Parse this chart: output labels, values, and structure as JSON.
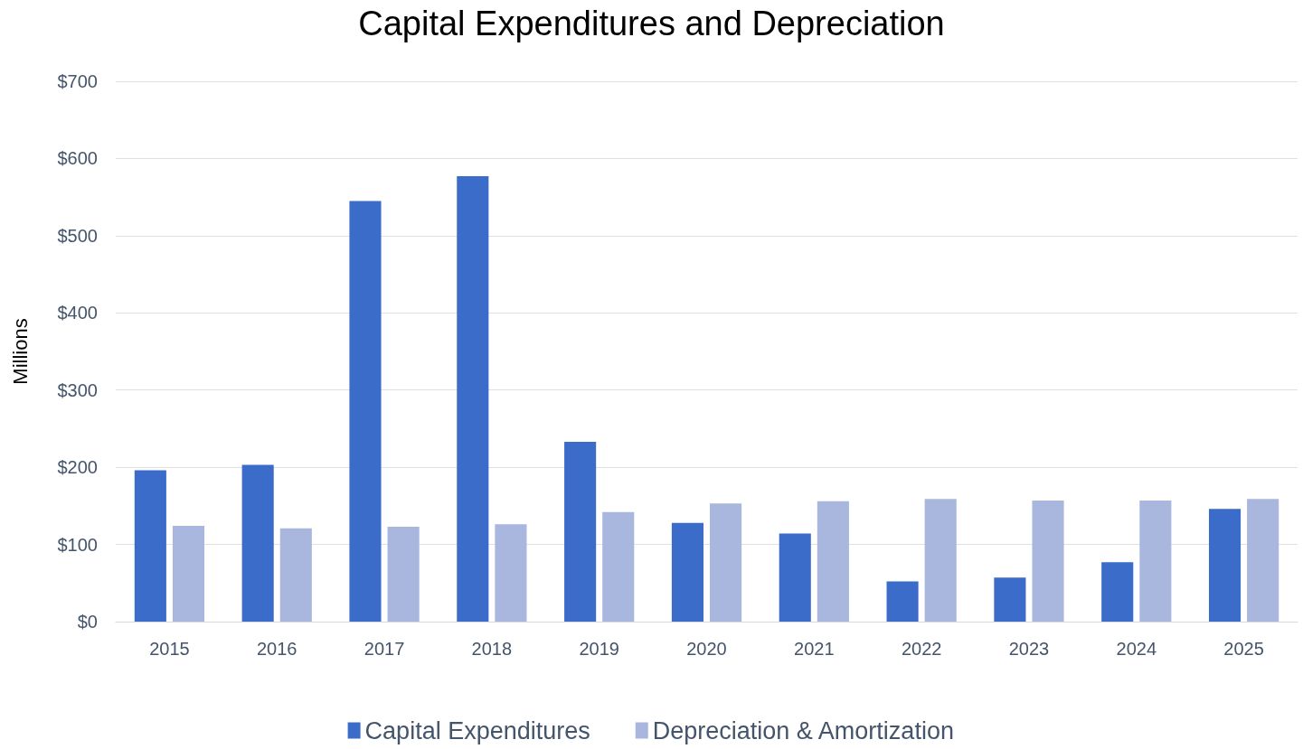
{
  "chart_data": {
    "type": "bar",
    "title": "Capital Expenditures and Depreciation",
    "ylabel": "Millions",
    "categories": [
      "2015",
      "2016",
      "2017",
      "2018",
      "2019",
      "2020",
      "2021",
      "2022",
      "2023",
      "2024",
      "2025"
    ],
    "series": [
      {
        "name": "Capital Expenditures",
        "color": "#3b6cc9",
        "values": [
          196,
          203,
          545,
          577,
          233,
          128,
          114,
          52,
          57,
          77,
          146
        ]
      },
      {
        "name": "Depreciation & Amortization",
        "color": "#a9b6de",
        "values": [
          124,
          121,
          123,
          126,
          142,
          153,
          156,
          159,
          157,
          157,
          159
        ]
      }
    ],
    "ylim": [
      0,
      700
    ],
    "yticks": [
      {
        "value": 0,
        "label": "$0"
      },
      {
        "value": 100,
        "label": "$100"
      },
      {
        "value": 200,
        "label": "$200"
      },
      {
        "value": 300,
        "label": "$300"
      },
      {
        "value": 400,
        "label": "$400"
      },
      {
        "value": 500,
        "label": "$500"
      },
      {
        "value": 600,
        "label": "$600"
      },
      {
        "value": 700,
        "label": "$700"
      }
    ],
    "grid": "y",
    "legend": "bottom"
  }
}
